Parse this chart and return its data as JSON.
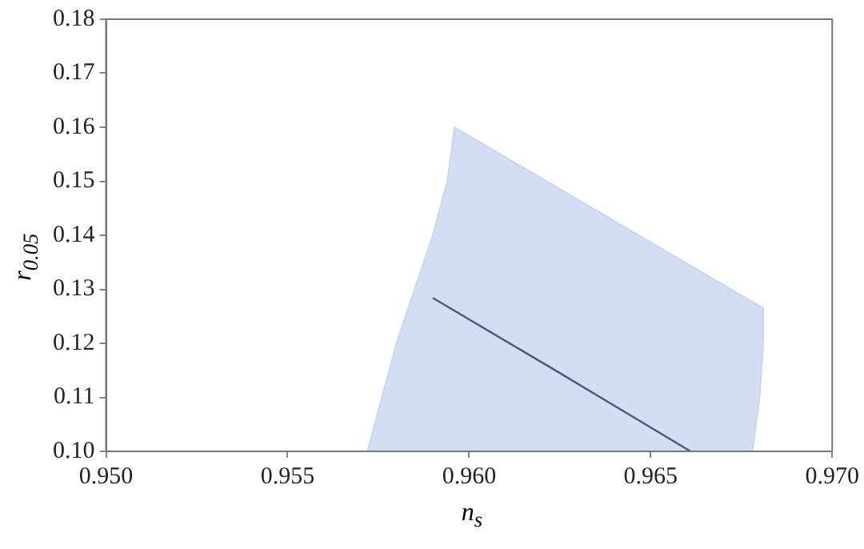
{
  "chart_data": {
    "type": "line",
    "xlabel": "n$_{s}$",
    "ylabel": "r$_{0.05}$",
    "series": [
      {
        "type": "area",
        "color": "#c9d6f0",
        "x": [
          0.9596,
          0.9594,
          0.959,
          0.9585,
          0.958,
          0.9576,
          0.9572,
          0.9678,
          0.968,
          0.9681,
          0.9681,
          0.9596
        ],
        "values": [
          0.16,
          0.15,
          0.14,
          0.13,
          0.12,
          0.11,
          0.1,
          0.1,
          0.11,
          0.12,
          0.1265,
          0.16
        ]
      },
      {
        "type": "line",
        "color": "#4a5a78",
        "x": [
          0.959,
          0.9625,
          0.9661
        ],
        "values": [
          0.1284,
          0.1145,
          0.1
        ]
      }
    ],
    "xlim": [
      0.95,
      0.97
    ],
    "xticks": [
      {
        "value": 0.95,
        "label": "0.950"
      },
      {
        "value": 0.955,
        "label": "0.955"
      },
      {
        "value": 0.96,
        "label": "0.960"
      },
      {
        "value": 0.965,
        "label": "0.965"
      },
      {
        "value": 0.97,
        "label": "0.970"
      }
    ],
    "ylim": [
      0.1,
      0.18
    ],
    "yticks": [
      {
        "value": 0.1,
        "label": "0.10"
      },
      {
        "value": 0.11,
        "label": "0.11"
      },
      {
        "value": 0.12,
        "label": "0.12"
      },
      {
        "value": 0.13,
        "label": "0.13"
      },
      {
        "value": 0.14,
        "label": "0.14"
      },
      {
        "value": 0.15,
        "label": "0.15"
      },
      {
        "value": 0.16,
        "label": "0.16"
      },
      {
        "value": 0.17,
        "label": "0.17"
      },
      {
        "value": 0.18,
        "label": "0.18"
      }
    ],
    "grid": false,
    "legend": false,
    "marker": "none",
    "line_style": "solid"
  }
}
